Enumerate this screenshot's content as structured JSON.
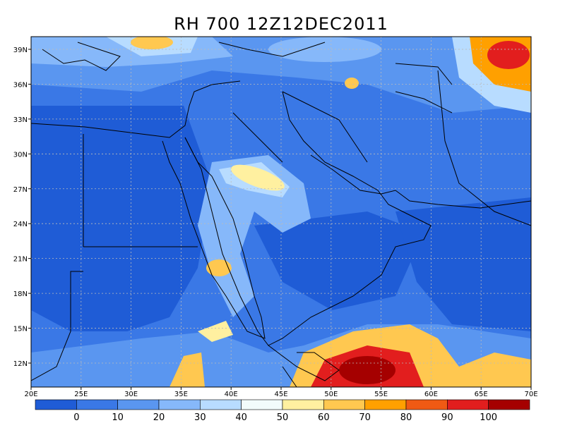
{
  "title": "RH 700 12Z12DEC2011",
  "map": {
    "lon_labels": [
      "20E",
      "25E",
      "30E",
      "35E",
      "40E",
      "45E",
      "50E",
      "55E",
      "60E",
      "65E",
      "70E"
    ],
    "lat_labels": [
      "12N",
      "15N",
      "18N",
      "21N",
      "24N",
      "27N",
      "30N",
      "33N",
      "36N",
      "39N"
    ]
  },
  "colorbar": {
    "levels": [
      0,
      10,
      20,
      30,
      40,
      50,
      60,
      70,
      80,
      90,
      100
    ],
    "colors": [
      "#1f5cd6",
      "#3a78e6",
      "#5a96f0",
      "#86b8fa",
      "#b8dcff",
      "#f2fbfb",
      "#fff0a0",
      "#ffc850",
      "#ffa000",
      "#f05a14",
      "#e21e1e",
      "#a50000"
    ]
  }
}
